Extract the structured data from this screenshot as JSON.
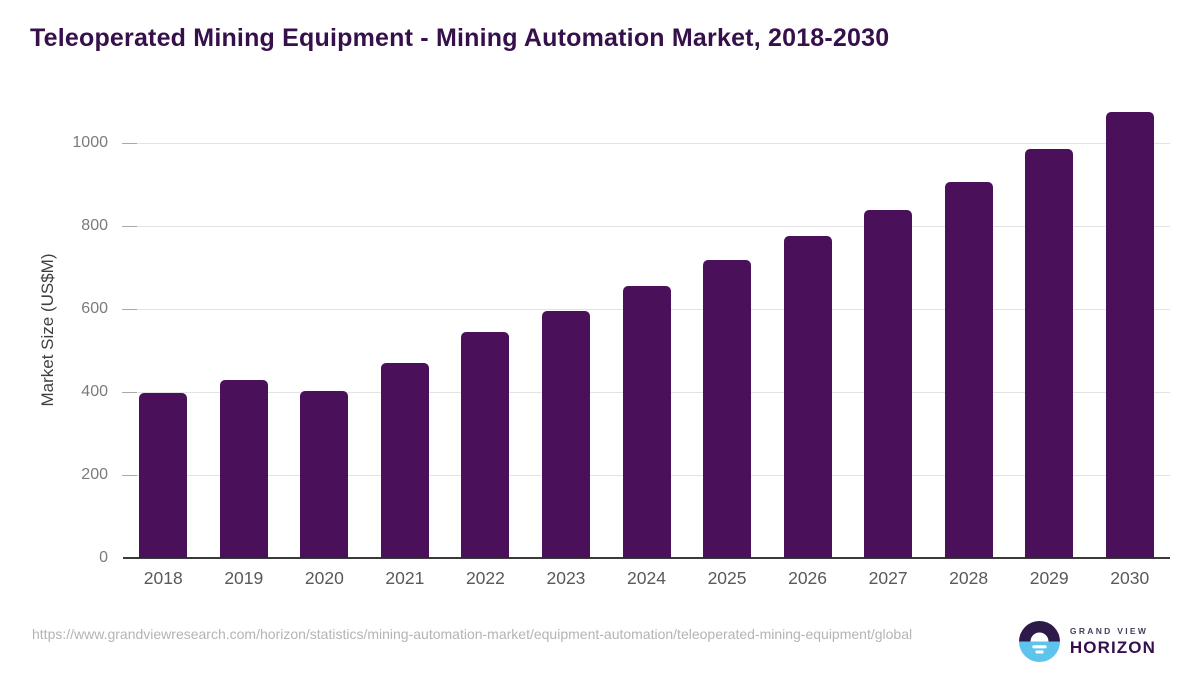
{
  "title": "Teleoperated Mining Equipment - Mining Automation Market, 2018-2030",
  "chart_data": {
    "type": "bar",
    "categories": [
      "2018",
      "2019",
      "2020",
      "2021",
      "2022",
      "2023",
      "2024",
      "2025",
      "2026",
      "2027",
      "2028",
      "2029",
      "2030"
    ],
    "values": [
      398,
      429,
      403,
      470,
      546,
      596,
      655,
      719,
      777,
      839,
      907,
      986,
      1076
    ],
    "title": "Teleoperated Mining Equipment - Mining Automation Market, 2018-2030",
    "xlabel": "",
    "ylabel": "Market Size (US$M)",
    "ylim": [
      0,
      1104
    ],
    "yticks": [
      0,
      200,
      400,
      600,
      800,
      1000
    ],
    "grid": "horizontal-gridlines-on",
    "legend": "none",
    "bar_color": "#4a115a"
  },
  "footer": {
    "source_url": "https://www.grandviewresearch.com/horizon/statistics/mining-automation-market/equipment-automation/teleoperated-mining-equipment/global"
  },
  "logo": {
    "line1": "GRAND VIEW",
    "line2": "HORIZON"
  },
  "colors": {
    "bar": "#4a115a",
    "title_text": "#35104b",
    "axis_line": "#3a3a3a",
    "gridline": "#e3e3e3",
    "y_label": "#7b7b7b",
    "x_label": "#595959",
    "footer_text": "#b4b4b4",
    "logo_purple": "#2e1a4a",
    "logo_blue": "#5ec3ed"
  }
}
